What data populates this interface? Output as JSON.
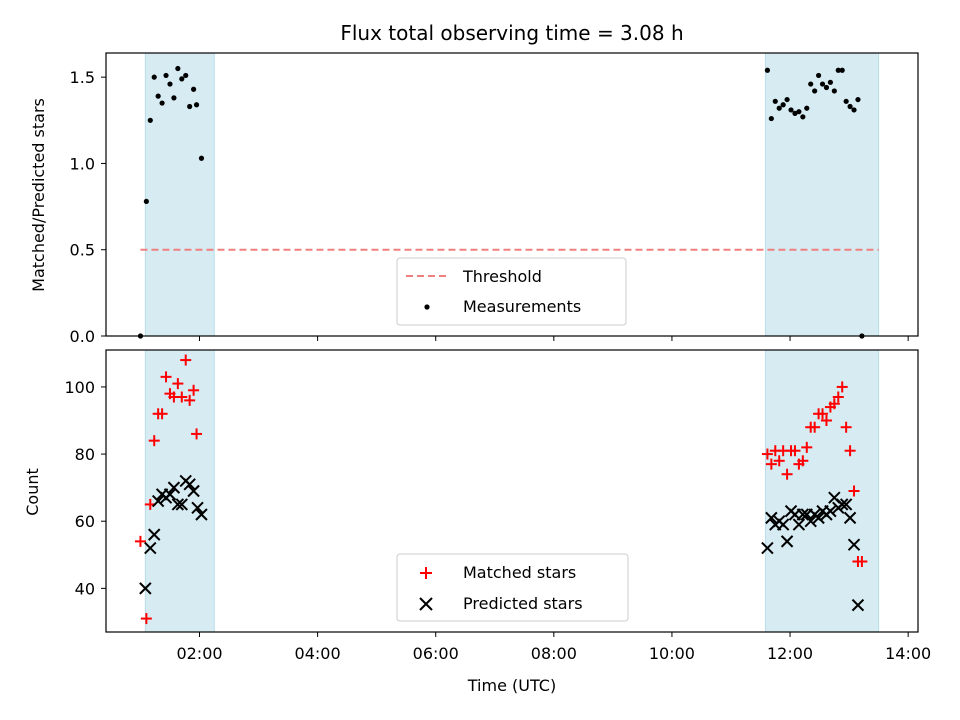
{
  "chart_data": [
    {
      "type": "scatter",
      "title": "Flux total observing time = 3.08 h",
      "xlabel": "",
      "ylabel": "Matched/Predicted stars",
      "xlim": [
        "00:25",
        "14:10"
      ],
      "ylim": [
        0,
        1.64
      ],
      "yticks": [
        "0.0",
        "0.5",
        "1.0",
        "1.5"
      ],
      "grid": false,
      "legend_position": "bottom-center",
      "shaded_intervals": [
        [
          "01:05",
          "02:15"
        ],
        [
          "11:35",
          "13:30"
        ]
      ],
      "threshold": {
        "label": "Threshold",
        "value": 0.5,
        "x_start": "01:00",
        "x_end": "13:30",
        "color": "#f08080"
      },
      "series": [
        {
          "name": "Measurements",
          "marker": "dot",
          "color": "#000000",
          "points": [
            [
              "01:00",
              0.0
            ],
            [
              "01:06",
              0.78
            ],
            [
              "01:10",
              1.25
            ],
            [
              "01:14",
              1.5
            ],
            [
              "01:18",
              1.39
            ],
            [
              "01:22",
              1.35
            ],
            [
              "01:26",
              1.51
            ],
            [
              "01:30",
              1.46
            ],
            [
              "01:34",
              1.38
            ],
            [
              "01:38",
              1.55
            ],
            [
              "01:42",
              1.49
            ],
            [
              "01:46",
              1.51
            ],
            [
              "01:50",
              1.33
            ],
            [
              "01:54",
              1.43
            ],
            [
              "01:57",
              1.34
            ],
            [
              "02:02",
              1.03
            ],
            [
              "11:37",
              1.54
            ],
            [
              "11:41",
              1.26
            ],
            [
              "11:45",
              1.36
            ],
            [
              "11:49",
              1.32
            ],
            [
              "11:53",
              1.34
            ],
            [
              "11:57",
              1.37
            ],
            [
              "12:01",
              1.31
            ],
            [
              "12:05",
              1.29
            ],
            [
              "12:09",
              1.3
            ],
            [
              "12:13",
              1.27
            ],
            [
              "12:17",
              1.32
            ],
            [
              "12:21",
              1.46
            ],
            [
              "12:25",
              1.42
            ],
            [
              "12:29",
              1.51
            ],
            [
              "12:33",
              1.46
            ],
            [
              "12:37",
              1.44
            ],
            [
              "12:41",
              1.47
            ],
            [
              "12:45",
              1.42
            ],
            [
              "12:49",
              1.54
            ],
            [
              "12:53",
              1.54
            ],
            [
              "12:57",
              1.36
            ],
            [
              "13:01",
              1.33
            ],
            [
              "13:05",
              1.31
            ],
            [
              "13:09",
              1.37
            ],
            [
              "13:13",
              0.0
            ]
          ]
        }
      ]
    },
    {
      "type": "scatter",
      "title": "",
      "xlabel": "Time (UTC)",
      "ylabel": "Count",
      "xlim": [
        "00:25",
        "14:10"
      ],
      "ylim": [
        27,
        111
      ],
      "xticks": [
        "02:00",
        "04:00",
        "06:00",
        "08:00",
        "10:00",
        "12:00",
        "14:00"
      ],
      "yticks": [
        "40",
        "60",
        "80",
        "100"
      ],
      "grid": false,
      "legend_position": "bottom-center",
      "shaded_intervals": [
        [
          "01:05",
          "02:15"
        ],
        [
          "11:35",
          "13:30"
        ]
      ],
      "series": [
        {
          "name": "Matched stars",
          "marker": "plus",
          "color": "#ff0000",
          "points": [
            [
              "01:00",
              54
            ],
            [
              "01:06",
              31
            ],
            [
              "01:10",
              65
            ],
            [
              "01:14",
              84
            ],
            [
              "01:18",
              92
            ],
            [
              "01:22",
              92
            ],
            [
              "01:26",
              103
            ],
            [
              "01:30",
              98
            ],
            [
              "01:34",
              97
            ],
            [
              "01:38",
              101
            ],
            [
              "01:42",
              97
            ],
            [
              "01:46",
              108
            ],
            [
              "01:50",
              96
            ],
            [
              "01:54",
              99
            ],
            [
              "01:57",
              86
            ],
            [
              "11:37",
              80
            ],
            [
              "11:41",
              77
            ],
            [
              "11:45",
              81
            ],
            [
              "11:49",
              78
            ],
            [
              "11:53",
              81
            ],
            [
              "11:57",
              74
            ],
            [
              "12:01",
              81
            ],
            [
              "12:05",
              81
            ],
            [
              "12:09",
              77
            ],
            [
              "12:13",
              78
            ],
            [
              "12:17",
              82
            ],
            [
              "12:21",
              88
            ],
            [
              "12:25",
              88
            ],
            [
              "12:29",
              92
            ],
            [
              "12:33",
              92
            ],
            [
              "12:37",
              90
            ],
            [
              "12:41",
              94
            ],
            [
              "12:45",
              95
            ],
            [
              "12:49",
              97
            ],
            [
              "12:53",
              100
            ],
            [
              "12:57",
              88
            ],
            [
              "13:01",
              81
            ],
            [
              "13:05",
              69
            ],
            [
              "13:09",
              48
            ],
            [
              "13:13",
              48
            ]
          ]
        },
        {
          "name": "Predicted stars",
          "marker": "x",
          "color": "#000000",
          "points": [
            [
              "01:05",
              40
            ],
            [
              "01:10",
              52
            ],
            [
              "01:14",
              56
            ],
            [
              "01:18",
              66
            ],
            [
              "01:22",
              68
            ],
            [
              "01:26",
              67
            ],
            [
              "01:30",
              68
            ],
            [
              "01:34",
              70
            ],
            [
              "01:38",
              65
            ],
            [
              "01:42",
              65
            ],
            [
              "01:46",
              72
            ],
            [
              "01:50",
              71
            ],
            [
              "01:54",
              69
            ],
            [
              "01:58",
              64
            ],
            [
              "02:02",
              62
            ],
            [
              "11:37",
              52
            ],
            [
              "11:41",
              61
            ],
            [
              "11:45",
              59
            ],
            [
              "11:49",
              60
            ],
            [
              "11:53",
              59
            ],
            [
              "11:57",
              54
            ],
            [
              "12:01",
              63
            ],
            [
              "12:05",
              62
            ],
            [
              "12:09",
              59
            ],
            [
              "12:13",
              62
            ],
            [
              "12:17",
              62
            ],
            [
              "12:21",
              60
            ],
            [
              "12:25",
              62
            ],
            [
              "12:29",
              61
            ],
            [
              "12:33",
              63
            ],
            [
              "12:37",
              62
            ],
            [
              "12:41",
              63
            ],
            [
              "12:45",
              67
            ],
            [
              "12:49",
              64
            ],
            [
              "12:53",
              65
            ],
            [
              "12:57",
              65
            ],
            [
              "13:01",
              61
            ],
            [
              "13:05",
              53
            ],
            [
              "13:09",
              35
            ]
          ]
        }
      ]
    }
  ]
}
